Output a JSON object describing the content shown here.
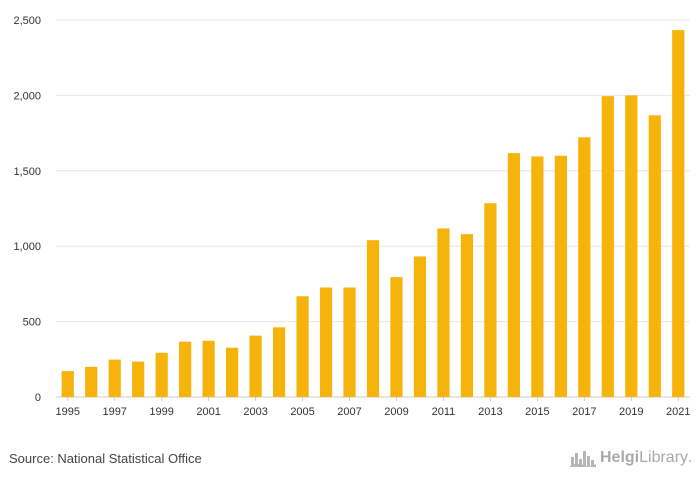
{
  "chart_data": {
    "type": "bar",
    "title": "",
    "xlabel": "",
    "ylabel": "",
    "categories": [
      "1995",
      "1996",
      "1997",
      "1998",
      "1999",
      "2000",
      "2001",
      "2002",
      "2003",
      "2004",
      "2005",
      "2006",
      "2007",
      "2008",
      "2009",
      "2010",
      "2011",
      "2012",
      "2013",
      "2014",
      "2015",
      "2016",
      "2017",
      "2018",
      "2019",
      "2020",
      "2021"
    ],
    "values": [
      172,
      200,
      248,
      235,
      293,
      367,
      373,
      327,
      407,
      462,
      668,
      726,
      726,
      1040,
      795,
      932,
      1118,
      1080,
      1285,
      1617,
      1595,
      1600,
      1722,
      1995,
      2000,
      1868,
      2433
    ],
    "ylim": [
      0,
      2500
    ],
    "yticks": [
      0,
      500,
      1000,
      1500,
      2000,
      2500
    ],
    "ytick_labels": [
      "0",
      "500",
      "1,000",
      "1,500",
      "2,000",
      "2,500"
    ],
    "xtick_labels": [
      "1995",
      "1997",
      "1999",
      "2001",
      "2003",
      "2005",
      "2007",
      "2009",
      "2011",
      "2013",
      "2015",
      "2017",
      "2019",
      "2021"
    ],
    "bar_color": "#f5b30b",
    "grid_color": "#e6e6e6",
    "grid": true
  },
  "source": "Source: National Statistical Office",
  "logo": {
    "name": "HelgiLibrary",
    "text_main": "Helgi",
    "text_rest": "Library",
    "dot": ".",
    "icon": "city-skyline-icon"
  }
}
